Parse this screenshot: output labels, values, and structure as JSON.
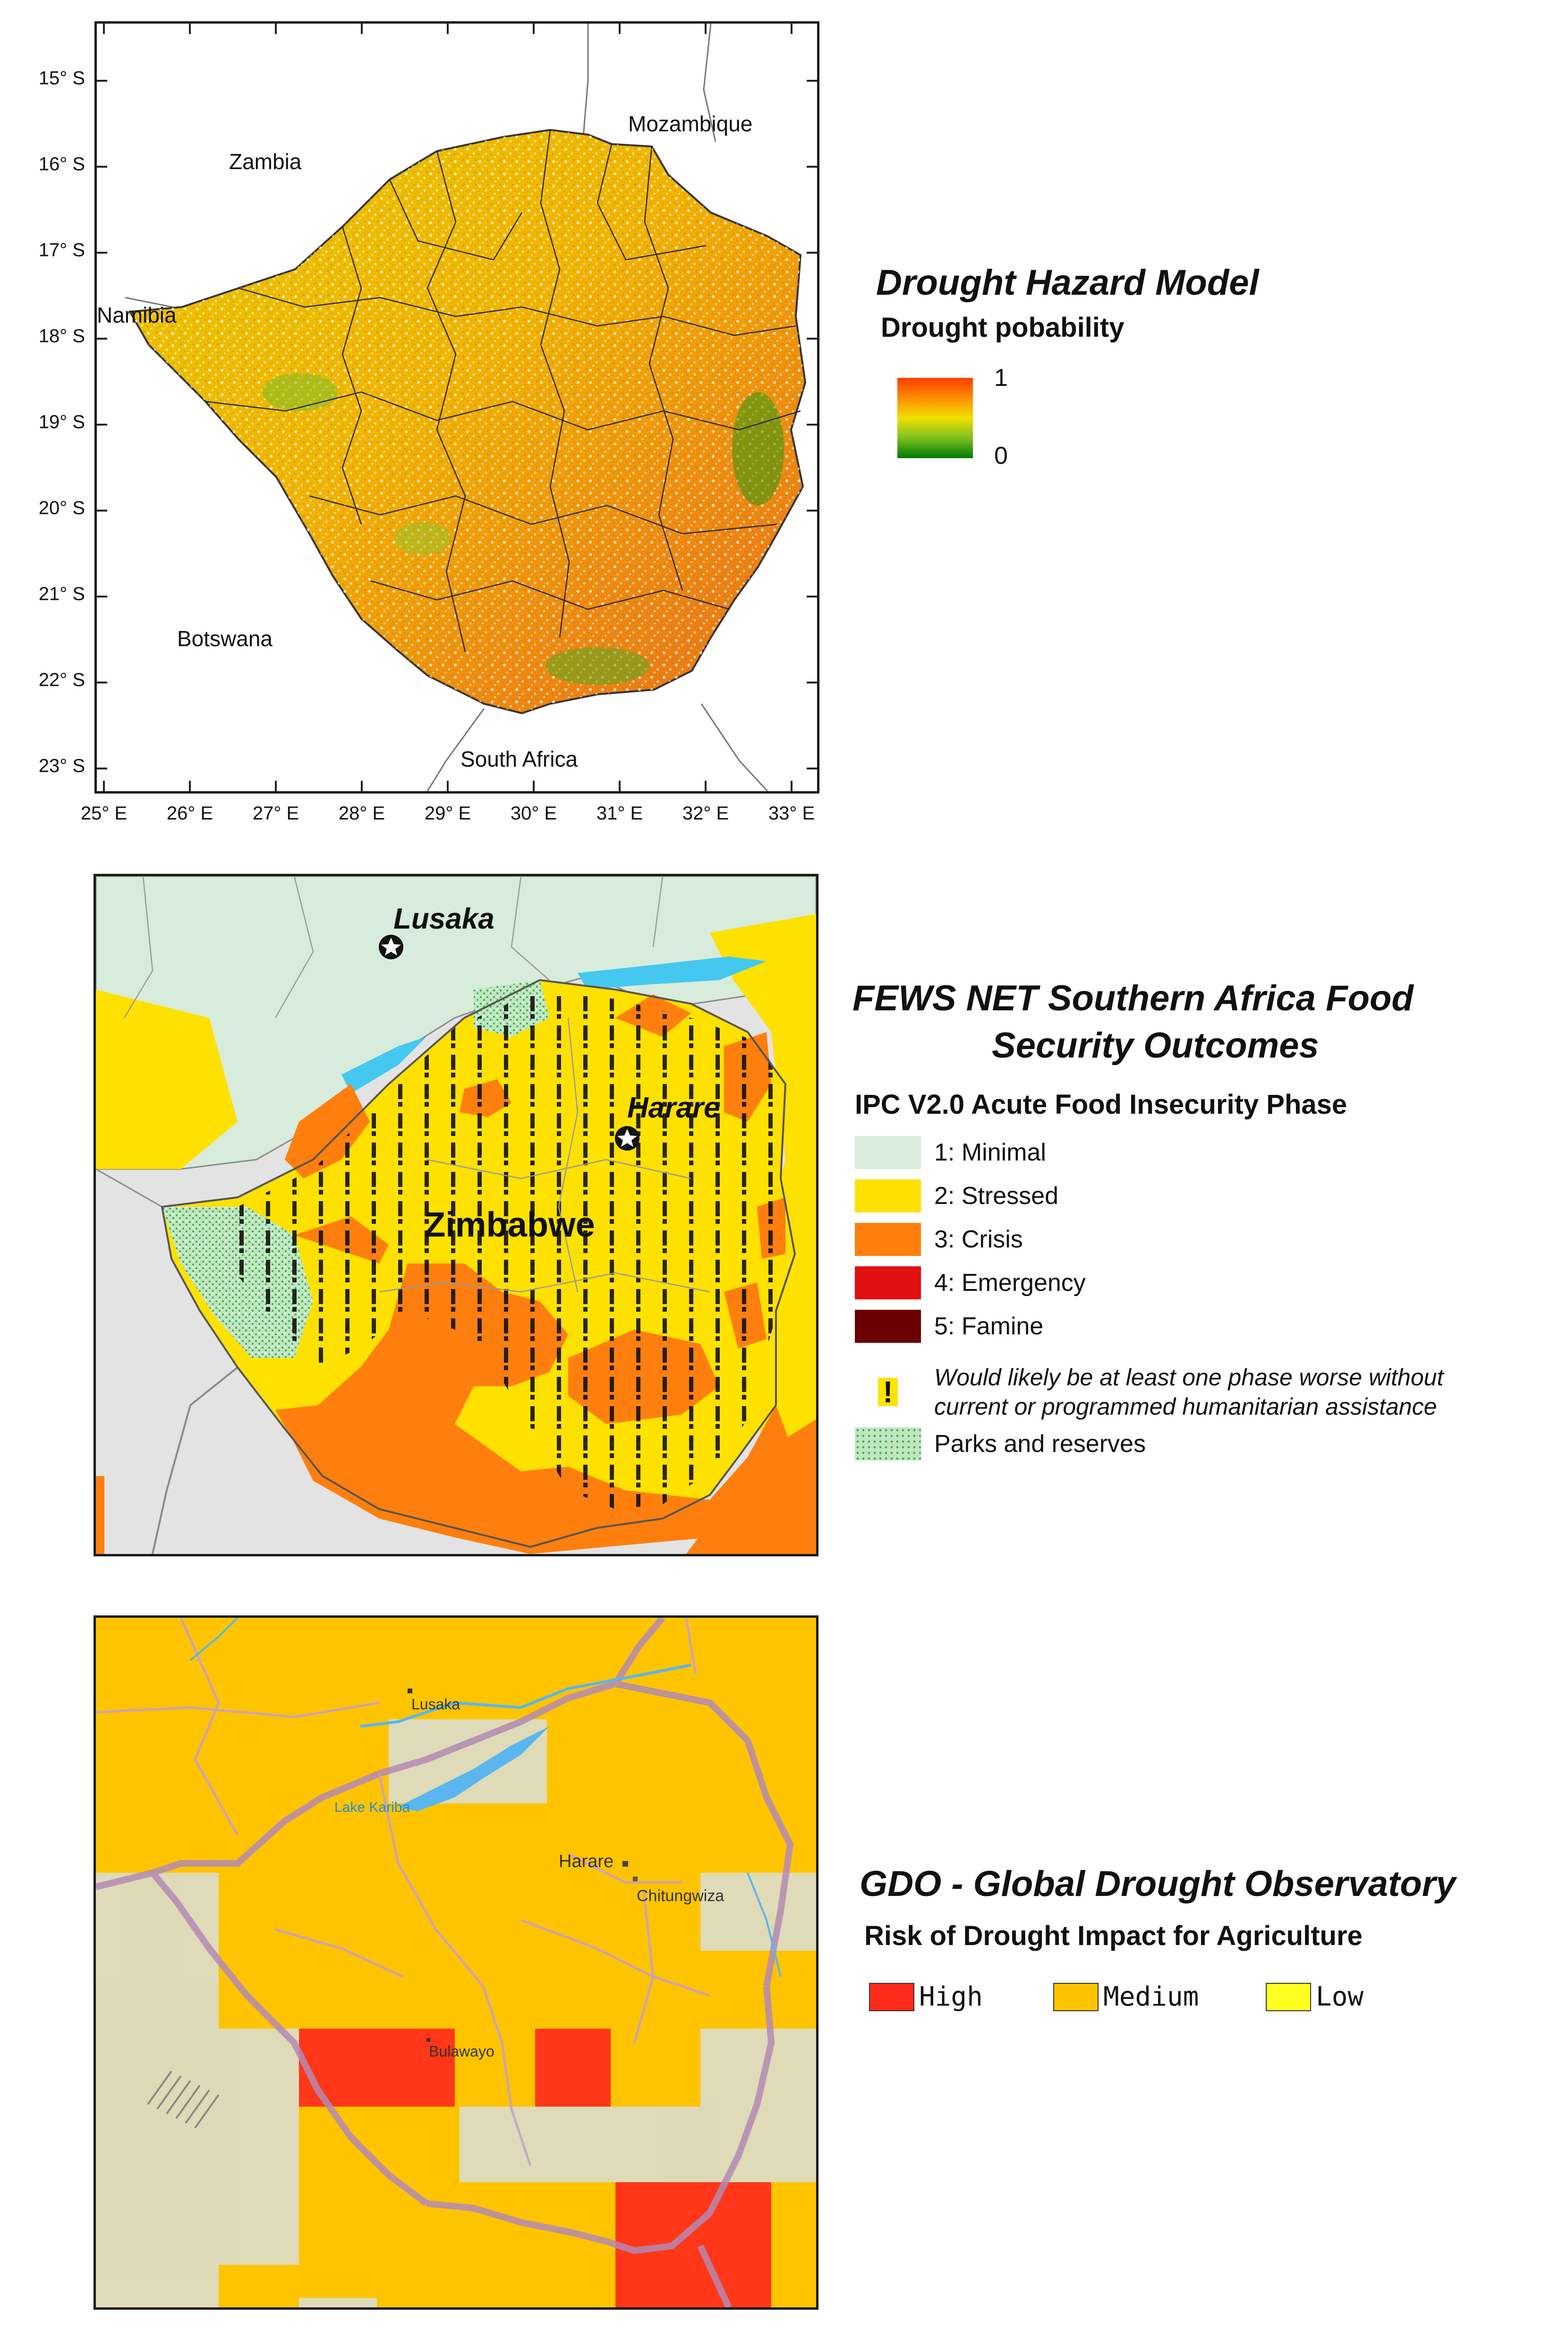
{
  "panel1": {
    "title": "Drought Hazard Model",
    "subtitle": "Drought pobability",
    "scale_max": "1",
    "scale_min": "0",
    "lat_labels": [
      "15° S",
      "16° S",
      "17° S",
      "18° S",
      "19° S",
      "20° S",
      "21° S",
      "22° S",
      "23° S"
    ],
    "lon_labels": [
      "25° E",
      "26° E",
      "27° E",
      "28° E",
      "29° E",
      "30° E",
      "31° E",
      "32° E",
      "33° E"
    ],
    "countries": {
      "zambia": "Zambia",
      "mozambique": "Mozambique",
      "namibia": "Namibia",
      "botswana": "Botswana",
      "south_africa": "South Africa"
    },
    "colors": {
      "low": "#007a00",
      "mid": "#e8e000",
      "high": "#ff3c00"
    }
  },
  "panel2": {
    "title_line1": "FEWS NET Southern Africa Food",
    "title_line2": "Security Outcomes",
    "subtitle": "IPC V2.0 Acute Food Insecurity Phase",
    "cities": {
      "lusaka": "Lusaka",
      "harare": "Harare"
    },
    "country_label": "Zimbabwe",
    "phases": [
      {
        "label": "1: Minimal",
        "color": "#d7ecdb"
      },
      {
        "label": "2: Stressed",
        "color": "#ffe100"
      },
      {
        "label": "3: Crisis",
        "color": "#ff7f0e"
      },
      {
        "label": "4: Emergency",
        "color": "#e21010"
      },
      {
        "label": "5: Famine",
        "color": "#6b0000"
      }
    ],
    "assistance_symbol": "!",
    "assistance_note_line1": "Would likely be at least one phase worse without",
    "assistance_note_line2": "current or programmed humanitarian assistance",
    "parks_label": "Parks and reserves"
  },
  "panel3": {
    "title": "GDO - Global Drought Observatory",
    "subtitle": "Risk of Drought Impact for Agriculture",
    "legend": [
      {
        "label": "High",
        "color": "#ff2a1a"
      },
      {
        "label": "Medium",
        "color": "#ffc400"
      },
      {
        "label": "Low",
        "color": "#ffff20"
      }
    ],
    "places": {
      "lusaka": "Lusaka",
      "lake": "Lake Kariba",
      "harare": "Harare",
      "chitungwiza": "Chitungwiza",
      "bulawayo": "Bulawayo"
    }
  }
}
